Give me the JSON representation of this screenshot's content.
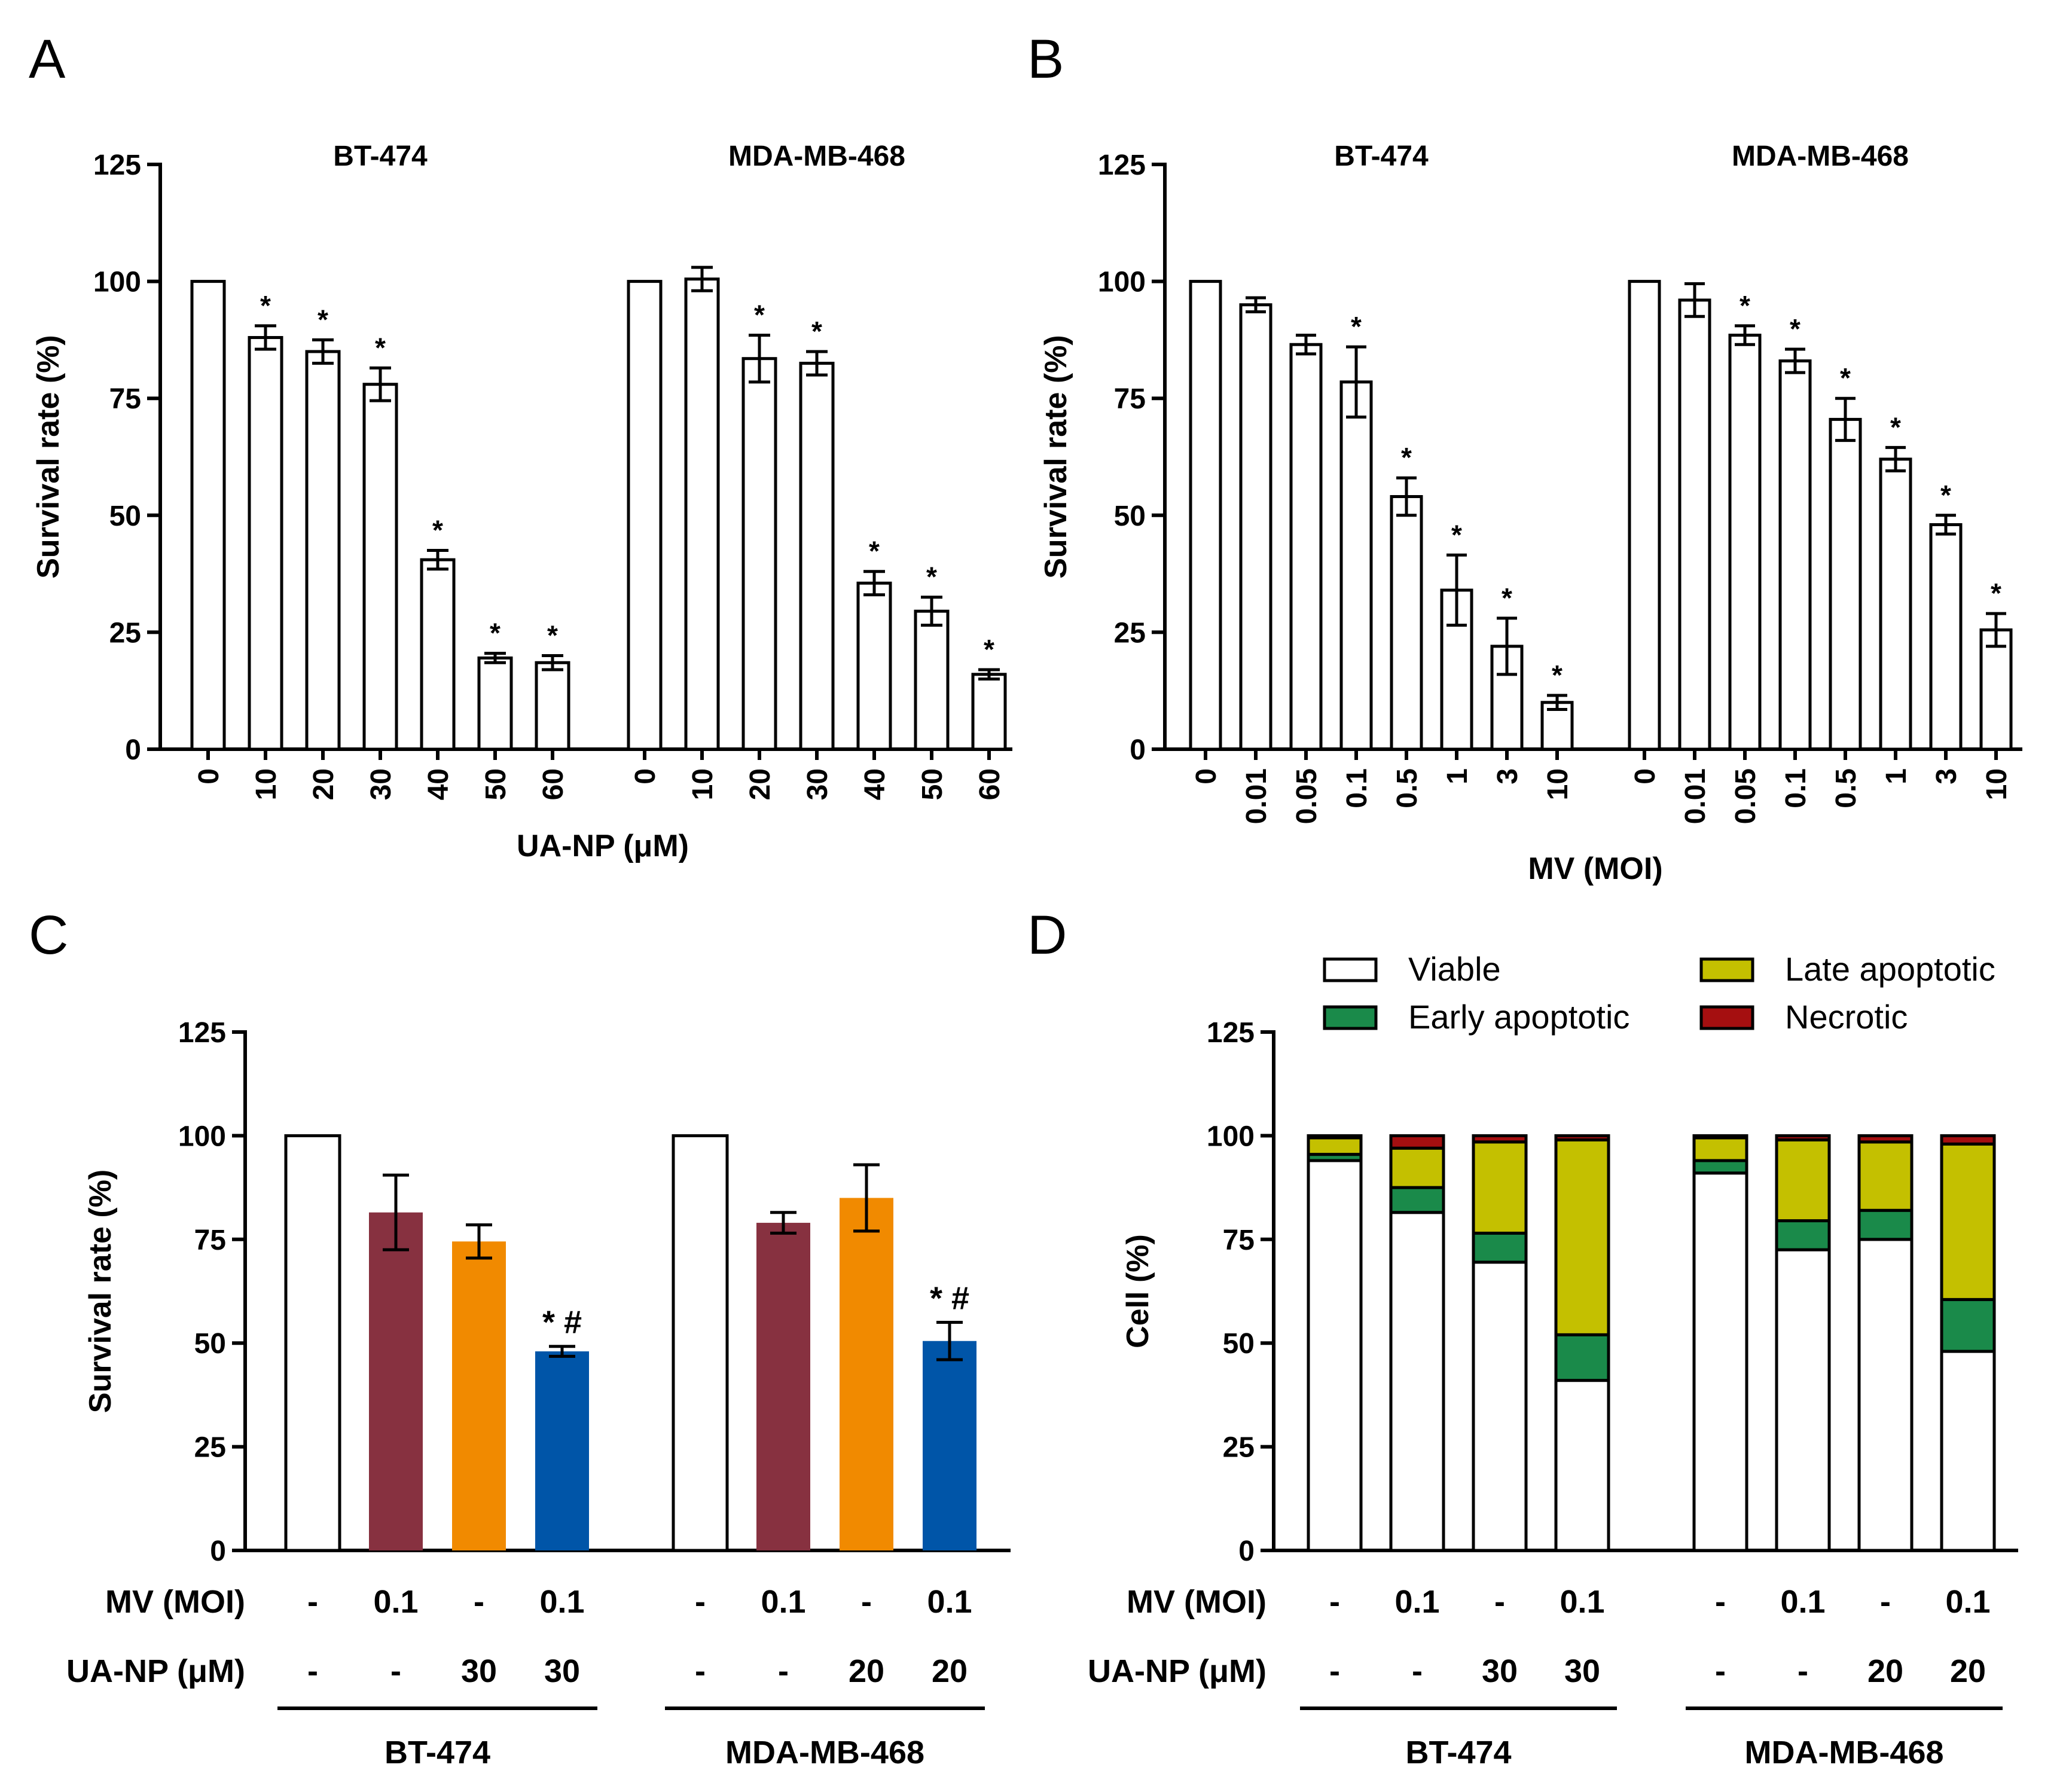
{
  "colors": {
    "white": "#ffffff",
    "maroon": "#873140",
    "orange": "#F18A00",
    "blue": "#0055A8",
    "viable": "#ffffff",
    "early": "#1A8A4A",
    "late": "#C4C000",
    "necrotic": "#A50F10"
  },
  "chart_data": [
    {
      "panel": "A",
      "type": "bar",
      "ylabel": "Survival rate (%)",
      "xlabel": "UA-NP (μM)",
      "ylim": [
        0,
        125
      ],
      "yticks": [
        "0",
        "25",
        "50",
        "75",
        "100",
        "125"
      ],
      "groups": [
        {
          "name": "BT-474",
          "categories": [
            "0",
            "10",
            "20",
            "30",
            "40",
            "50",
            "60"
          ],
          "values": [
            100,
            88,
            85,
            78,
            40.5,
            19.5,
            18.5
          ],
          "errors": [
            0,
            2.5,
            2.5,
            3.5,
            2,
            1,
            1.5
          ],
          "sig": [
            "",
            "*",
            "*",
            "*",
            "*",
            "*",
            "*"
          ]
        },
        {
          "name": "MDA-MB-468",
          "categories": [
            "0",
            "10",
            "20",
            "30",
            "40",
            "50",
            "60"
          ],
          "values": [
            100,
            100.5,
            83.5,
            82.5,
            35.5,
            29.5,
            16
          ],
          "errors": [
            0,
            2.5,
            5,
            2.5,
            2.5,
            3,
            1
          ],
          "sig": [
            "",
            "",
            "*",
            "*",
            "*",
            "*",
            "*"
          ]
        }
      ]
    },
    {
      "panel": "B",
      "type": "bar",
      "ylabel": "Survival rate (%)",
      "xlabel": "MV (MOI)",
      "ylim": [
        0,
        125
      ],
      "yticks": [
        "0",
        "25",
        "50",
        "75",
        "100",
        "125"
      ],
      "groups": [
        {
          "name": "BT-474",
          "categories": [
            "0",
            "0.01",
            "0.05",
            "0.1",
            "0.5",
            "1",
            "3",
            "10"
          ],
          "values": [
            100,
            95,
            86.5,
            78.5,
            54,
            34,
            22,
            10
          ],
          "errors": [
            0,
            1.5,
            2,
            7.5,
            4,
            7.5,
            6,
            1.5
          ],
          "sig": [
            "",
            "",
            "",
            "*",
            "*",
            "*",
            "*",
            "*"
          ]
        },
        {
          "name": "MDA-MB-468",
          "categories": [
            "0",
            "0.01",
            "0.05",
            "0.1",
            "0.5",
            "1",
            "3",
            "10"
          ],
          "values": [
            100,
            96,
            88.5,
            83,
            70.5,
            62,
            48,
            25.5
          ],
          "errors": [
            0,
            3.5,
            2,
            2.5,
            4.5,
            2.5,
            2,
            3.5
          ],
          "sig": [
            "",
            "",
            "*",
            "*",
            "*",
            "*",
            "*",
            "*"
          ]
        }
      ]
    },
    {
      "panel": "C",
      "type": "bar",
      "ylabel": "Survival rate (%)",
      "ylim": [
        0,
        125
      ],
      "yticks": [
        "0",
        "25",
        "50",
        "75",
        "100",
        "125"
      ],
      "row_labels": [
        "MV (MOI)",
        "UA-NP (μM)"
      ],
      "groups": [
        {
          "name": "BT-474",
          "mv": [
            "-",
            "0.1",
            "-",
            "0.1"
          ],
          "uanp": [
            "-",
            "-",
            "30",
            "30"
          ],
          "values": [
            100,
            81.5,
            74.5,
            48
          ],
          "errors": [
            0,
            9,
            4,
            1.2
          ],
          "fills": [
            "white",
            "maroon",
            "orange",
            "blue"
          ],
          "sig": [
            "",
            "",
            "",
            "* #"
          ]
        },
        {
          "name": "MDA-MB-468",
          "mv": [
            "-",
            "0.1",
            "-",
            "0.1"
          ],
          "uanp": [
            "-",
            "-",
            "20",
            "20"
          ],
          "values": [
            100,
            79,
            85,
            50.5
          ],
          "errors": [
            0,
            2.5,
            8,
            4.5
          ],
          "fills": [
            "white",
            "maroon",
            "orange",
            "blue"
          ],
          "sig": [
            "",
            "",
            "",
            "* #"
          ]
        }
      ]
    },
    {
      "panel": "D",
      "type": "bar",
      "stacked": true,
      "ylabel": "Cell (%)",
      "ylim": [
        0,
        125
      ],
      "yticks": [
        "0",
        "25",
        "50",
        "75",
        "100",
        "125"
      ],
      "row_labels": [
        "MV (MOI)",
        "UA-NP (μM)"
      ],
      "legend": [
        "Viable",
        "Late apoptotic",
        "Early apoptotic",
        "Necrotic"
      ],
      "groups": [
        {
          "name": "BT-474",
          "mv": [
            "-",
            "0.1",
            "-",
            "0.1"
          ],
          "uanp": [
            "-",
            "-",
            "30",
            "30"
          ],
          "stacks": [
            {
              "viable": 94,
              "early": 1.5,
              "late": 4,
              "necrotic": 0.5
            },
            {
              "viable": 81.5,
              "early": 6,
              "late": 9.5,
              "necrotic": 3
            },
            {
              "viable": 69.5,
              "early": 7,
              "late": 22,
              "necrotic": 1.5
            },
            {
              "viable": 41,
              "early": 11,
              "late": 47,
              "necrotic": 1
            }
          ]
        },
        {
          "name": "MDA-MB-468",
          "mv": [
            "-",
            "0.1",
            "-",
            "0.1"
          ],
          "uanp": [
            "-",
            "-",
            "20",
            "20"
          ],
          "stacks": [
            {
              "viable": 91,
              "early": 3,
              "late": 5.5,
              "necrotic": 0.5
            },
            {
              "viable": 72.5,
              "early": 7,
              "late": 19.5,
              "necrotic": 1
            },
            {
              "viable": 75,
              "early": 7,
              "late": 16.5,
              "necrotic": 1.5
            },
            {
              "viable": 48,
              "early": 12.5,
              "late": 37.5,
              "necrotic": 2
            }
          ]
        }
      ]
    }
  ]
}
